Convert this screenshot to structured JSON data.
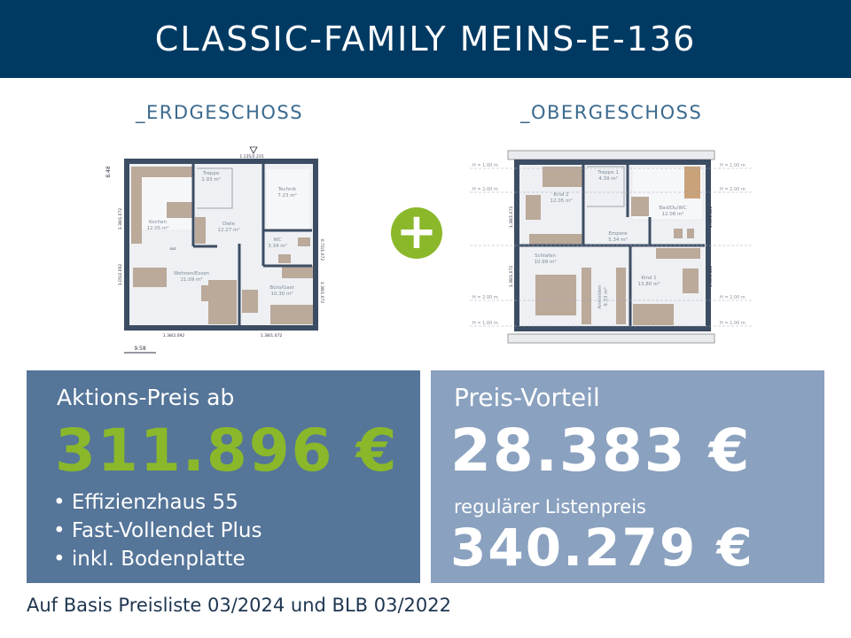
{
  "header": {
    "title": "CLASSIC-FAMILY MEINS-E-136"
  },
  "ground_floor": {
    "title": "_ERDGESCHOSS",
    "rooms": [
      {
        "name": "Treppe",
        "area": "1.93 m²"
      },
      {
        "name": "Technik",
        "area": "7.23 m²"
      },
      {
        "name": "Kochen",
        "area": "12.05 m²"
      },
      {
        "name": "Diele",
        "area": "12.27 m²"
      },
      {
        "name": "WC",
        "area": "3.34 m²"
      },
      {
        "name": "Wohnen/Essen",
        "area": "21.09 m²"
      },
      {
        "name": "Büro/Gast",
        "area": "10.30 m²"
      }
    ],
    "dims": {
      "width": "9.58",
      "depth": "8.48",
      "door": "1.135/2.215",
      "win_bottom_left": "1.38/2.092",
      "win_bottom_right": "1.38/1.072",
      "win_left_top": "1.38/1.072",
      "win_left_bottom": "1.05/2.092",
      "win_right_top": "0.72/1.072",
      "win_right_bottom": "1.38/1.072",
      "suz": "SUZ"
    }
  },
  "plus_icon": "plus-icon",
  "upper_floor": {
    "title": "_OBERGESCHOSS",
    "rooms": [
      {
        "name": "Kind 2",
        "area": "12.05 m²"
      },
      {
        "name": "Treppe 1",
        "area": "4.39 m²"
      },
      {
        "name": "Bad/Du/WC",
        "area": "12.08 m²"
      },
      {
        "name": "Empore",
        "area": "5.34 m²"
      },
      {
        "name": "Schlafen",
        "area": "10.99 m²"
      },
      {
        "name": "Ankleiden",
        "area": "9.33 m²"
      },
      {
        "name": "Kind 1",
        "area": "13.80 m²"
      }
    ],
    "heights": {
      "h1": "H = 1.00 m",
      "h2": "H = 2.00 m"
    },
    "dims": {
      "win_left_top": "1.38/1.072",
      "win_left_bottom": "1.38/1.072",
      "win_right_top": "1.38/1.422",
      "win_right_bottom": "1.38/1.422"
    }
  },
  "offer": {
    "label": "Aktions-Preis ab",
    "price": "311.896 €",
    "features": [
      "Effizienzhaus 55",
      "Fast-Vollendet Plus",
      "inkl. Bodenplatte"
    ]
  },
  "advantage": {
    "label": "Preis-Vorteil",
    "amount": "28.383 €",
    "list_label": "regulärer Listenpreis",
    "list_price": "340.279 €"
  },
  "footnote": "Auf Basis Preisliste 03/2024 und BLB 03/2022",
  "colors": {
    "header": "#003a63",
    "accent_green": "#8ab82a",
    "box_left": "#557599",
    "box_right": "#8aa1bf",
    "wall": "#3c4d63",
    "furniture": "#bba99a"
  }
}
